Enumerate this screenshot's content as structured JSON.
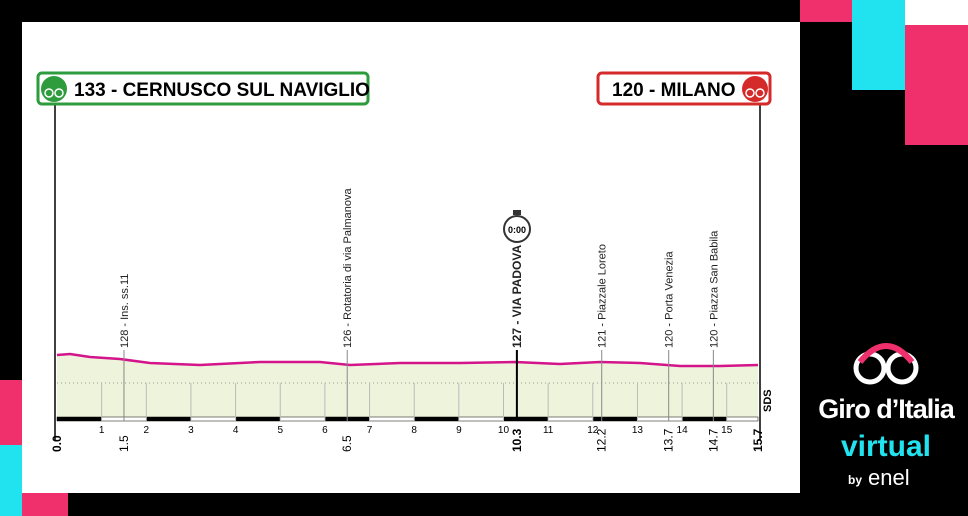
{
  "header": {
    "start": "133 - CERNUSCO SUL NAVIGLIO",
    "finish": "120 - MILANO"
  },
  "waypoints": [
    {
      "km": "0.0",
      "label": null,
      "bold": true
    },
    {
      "km": "1.5",
      "label": "128 - Ins. ss.11",
      "bold": false
    },
    {
      "km": "6.5",
      "label": "126 - Rotatoria di via Palmanova",
      "bold": false
    },
    {
      "km": "10.3",
      "label": "127 - VIA PADOVA",
      "bold": true
    },
    {
      "km": "12.2",
      "label": "121 - Piazzale Loreto",
      "bold": false
    },
    {
      "km": "13.7",
      "label": "120 - Porta Venezia",
      "bold": false
    },
    {
      "km": "14.7",
      "label": "120 - Piazza San Babila",
      "bold": false
    },
    {
      "km": "15.7",
      "label": null,
      "bold": true
    }
  ],
  "km_ticks": [
    "1",
    "2",
    "3",
    "4",
    "5",
    "6",
    "7",
    "8",
    "9",
    "10",
    "11",
    "12",
    "13",
    "14",
    "15"
  ],
  "timer": "0:00",
  "sprint_label": "SDS",
  "logo": {
    "name": "Giro d’Italia",
    "sub": "virtual",
    "by": "by",
    "sponsor": "enel"
  }
}
